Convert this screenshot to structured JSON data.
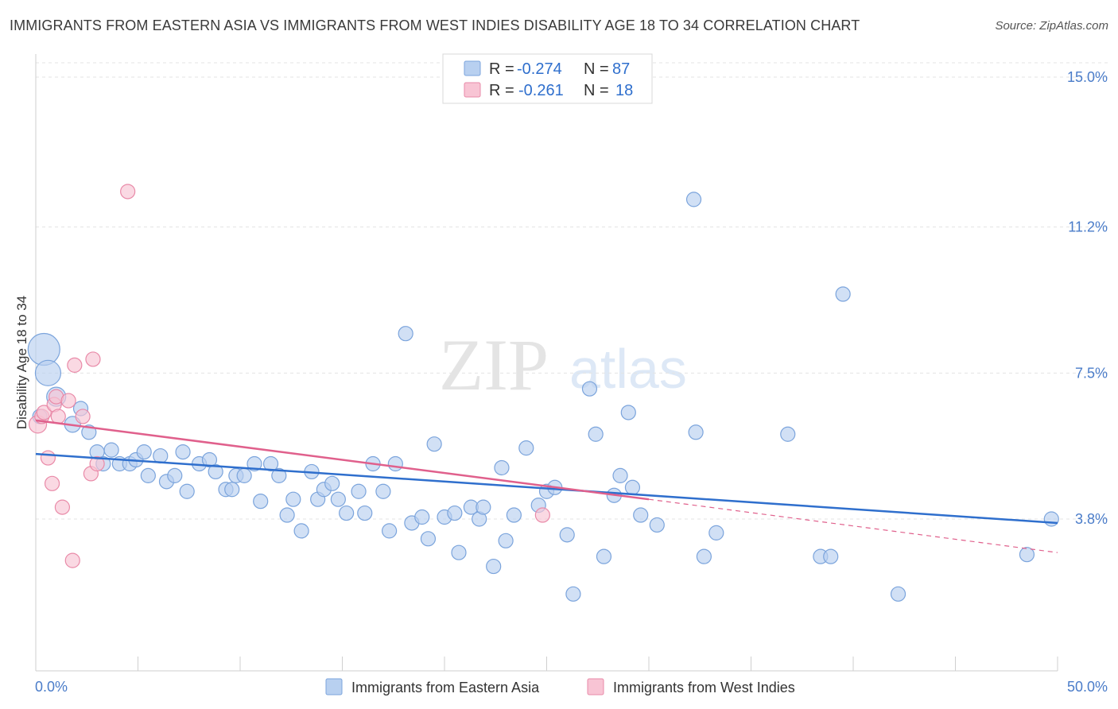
{
  "header": {
    "title": "IMMIGRANTS FROM EASTERN ASIA VS IMMIGRANTS FROM WEST INDIES DISABILITY AGE 18 TO 34 CORRELATION CHART",
    "source": "Source: ZipAtlas.com"
  },
  "watermark": {
    "zip": "ZIP",
    "atlas": "atlas"
  },
  "colors": {
    "blue_fill": "#b8d0f0",
    "blue_stroke": "#7ba4dc",
    "blue_line": "#2f6fcd",
    "pink_fill": "#f8c4d4",
    "pink_stroke": "#e98aa8",
    "pink_line": "#e0608c",
    "tick_text": "#4a7cc9"
  },
  "legend": {
    "rows": [
      {
        "r_label": "R =",
        "r_value": "-0.274",
        "n_label": "N =",
        "n_value": "87"
      },
      {
        "r_label": "R =",
        "r_value": "-0.261",
        "n_label": "N =",
        "n_value": "18"
      }
    ]
  },
  "chart_data": {
    "type": "scatter",
    "title": "IMMIGRANTS FROM EASTERN ASIA VS IMMIGRANTS FROM WEST INDIES DISABILITY AGE 18 TO 34 CORRELATION CHART",
    "xlabel": "",
    "ylabel": "Disability Age 18 to 34",
    "xlim": [
      0,
      50
    ],
    "ylim": [
      0,
      15.5
    ],
    "x_tick_labels": [
      "0.0%",
      "50.0%"
    ],
    "y_ticks": [
      3.8,
      7.5,
      11.2,
      15.0
    ],
    "y_tick_labels": [
      "3.8%",
      "7.5%",
      "11.2%",
      "15.0%"
    ],
    "grid": true,
    "legend_position": "bottom",
    "series": [
      {
        "name": "Immigrants from Eastern Asia",
        "color": "#7ba4dc",
        "trend": {
          "x": [
            0,
            50
          ],
          "y": [
            5.45,
            3.7
          ]
        },
        "points": [
          {
            "x": 0.4,
            "y": 8.1,
            "s": 20
          },
          {
            "x": 0.6,
            "y": 7.5,
            "s": 16
          },
          {
            "x": 1.0,
            "y": 6.9,
            "s": 12
          },
          {
            "x": 1.8,
            "y": 6.2,
            "s": 10
          },
          {
            "x": 2.2,
            "y": 6.6,
            "s": 9
          },
          {
            "x": 2.6,
            "y": 6.0,
            "s": 9
          },
          {
            "x": 3.0,
            "y": 5.5,
            "s": 9
          },
          {
            "x": 3.3,
            "y": 5.2,
            "s": 9
          },
          {
            "x": 3.7,
            "y": 5.55,
            "s": 9
          },
          {
            "x": 4.1,
            "y": 5.2,
            "s": 9
          },
          {
            "x": 4.6,
            "y": 5.2,
            "s": 9
          },
          {
            "x": 4.9,
            "y": 5.3,
            "s": 9
          },
          {
            "x": 5.3,
            "y": 5.5,
            "s": 9
          },
          {
            "x": 5.5,
            "y": 4.9,
            "s": 9
          },
          {
            "x": 6.1,
            "y": 5.4,
            "s": 9
          },
          {
            "x": 6.4,
            "y": 4.75,
            "s": 9
          },
          {
            "x": 6.8,
            "y": 4.9,
            "s": 9
          },
          {
            "x": 7.2,
            "y": 5.5,
            "s": 9
          },
          {
            "x": 7.4,
            "y": 4.5,
            "s": 9
          },
          {
            "x": 8.0,
            "y": 5.2,
            "s": 9
          },
          {
            "x": 8.5,
            "y": 5.3,
            "s": 9
          },
          {
            "x": 8.8,
            "y": 5.0,
            "s": 9
          },
          {
            "x": 9.3,
            "y": 4.55,
            "s": 9
          },
          {
            "x": 9.6,
            "y": 4.55,
            "s": 9
          },
          {
            "x": 9.8,
            "y": 4.9,
            "s": 9
          },
          {
            "x": 10.2,
            "y": 4.9,
            "s": 9
          },
          {
            "x": 10.7,
            "y": 5.2,
            "s": 9
          },
          {
            "x": 11.0,
            "y": 4.25,
            "s": 9
          },
          {
            "x": 11.5,
            "y": 5.2,
            "s": 9
          },
          {
            "x": 11.9,
            "y": 4.9,
            "s": 9
          },
          {
            "x": 12.3,
            "y": 3.9,
            "s": 9
          },
          {
            "x": 12.6,
            "y": 4.3,
            "s": 9
          },
          {
            "x": 13.0,
            "y": 3.5,
            "s": 9
          },
          {
            "x": 13.5,
            "y": 5.0,
            "s": 9
          },
          {
            "x": 13.8,
            "y": 4.3,
            "s": 9
          },
          {
            "x": 14.1,
            "y": 4.55,
            "s": 9
          },
          {
            "x": 14.5,
            "y": 4.7,
            "s": 9
          },
          {
            "x": 14.8,
            "y": 4.3,
            "s": 9
          },
          {
            "x": 15.2,
            "y": 3.95,
            "s": 9
          },
          {
            "x": 15.8,
            "y": 4.5,
            "s": 9
          },
          {
            "x": 16.1,
            "y": 3.95,
            "s": 9
          },
          {
            "x": 16.5,
            "y": 5.2,
            "s": 9
          },
          {
            "x": 17.0,
            "y": 4.5,
            "s": 9
          },
          {
            "x": 17.3,
            "y": 3.5,
            "s": 9
          },
          {
            "x": 17.6,
            "y": 5.2,
            "s": 9
          },
          {
            "x": 18.1,
            "y": 8.5,
            "s": 9
          },
          {
            "x": 18.4,
            "y": 3.7,
            "s": 9
          },
          {
            "x": 18.9,
            "y": 3.85,
            "s": 9
          },
          {
            "x": 19.2,
            "y": 3.3,
            "s": 9
          },
          {
            "x": 19.5,
            "y": 5.7,
            "s": 9
          },
          {
            "x": 20.0,
            "y": 3.85,
            "s": 9
          },
          {
            "x": 20.5,
            "y": 3.95,
            "s": 9
          },
          {
            "x": 20.7,
            "y": 2.95,
            "s": 9
          },
          {
            "x": 21.3,
            "y": 4.1,
            "s": 9
          },
          {
            "x": 21.7,
            "y": 3.8,
            "s": 9
          },
          {
            "x": 21.9,
            "y": 4.1,
            "s": 9
          },
          {
            "x": 22.4,
            "y": 2.6,
            "s": 9
          },
          {
            "x": 22.8,
            "y": 5.1,
            "s": 9
          },
          {
            "x": 23.0,
            "y": 3.25,
            "s": 9
          },
          {
            "x": 23.4,
            "y": 3.9,
            "s": 9
          },
          {
            "x": 24.0,
            "y": 5.6,
            "s": 9
          },
          {
            "x": 24.6,
            "y": 4.15,
            "s": 9
          },
          {
            "x": 25.0,
            "y": 4.5,
            "s": 9
          },
          {
            "x": 25.4,
            "y": 4.6,
            "s": 9
          },
          {
            "x": 26.0,
            "y": 3.4,
            "s": 9
          },
          {
            "x": 26.3,
            "y": 1.9,
            "s": 9
          },
          {
            "x": 27.1,
            "y": 7.1,
            "s": 9
          },
          {
            "x": 27.4,
            "y": 5.95,
            "s": 9
          },
          {
            "x": 27.8,
            "y": 2.85,
            "s": 9
          },
          {
            "x": 28.3,
            "y": 4.4,
            "s": 9
          },
          {
            "x": 28.6,
            "y": 4.9,
            "s": 9
          },
          {
            "x": 29.0,
            "y": 6.5,
            "s": 9
          },
          {
            "x": 29.2,
            "y": 4.6,
            "s": 9
          },
          {
            "x": 29.6,
            "y": 3.9,
            "s": 9
          },
          {
            "x": 30.4,
            "y": 3.65,
            "s": 9
          },
          {
            "x": 32.2,
            "y": 11.9,
            "s": 9
          },
          {
            "x": 32.3,
            "y": 6.0,
            "s": 9
          },
          {
            "x": 32.7,
            "y": 2.85,
            "s": 9
          },
          {
            "x": 33.3,
            "y": 3.45,
            "s": 9
          },
          {
            "x": 36.8,
            "y": 5.95,
            "s": 9
          },
          {
            "x": 38.4,
            "y": 2.85,
            "s": 9
          },
          {
            "x": 38.9,
            "y": 2.85,
            "s": 9
          },
          {
            "x": 39.5,
            "y": 9.5,
            "s": 9
          },
          {
            "x": 42.2,
            "y": 1.9,
            "s": 9
          },
          {
            "x": 48.5,
            "y": 2.9,
            "s": 9
          },
          {
            "x": 49.7,
            "y": 3.8,
            "s": 9
          },
          {
            "x": 0.2,
            "y": 6.4,
            "s": 9
          }
        ]
      },
      {
        "name": "Immigrants from West Indies",
        "color": "#e98aa8",
        "trend": {
          "x": [
            0,
            30
          ],
          "y": [
            6.3,
            4.3
          ]
        },
        "trend_dashed": {
          "x": [
            30,
            50
          ],
          "y": [
            4.3,
            2.95
          ]
        },
        "points": [
          {
            "x": 0.1,
            "y": 6.2,
            "s": 11
          },
          {
            "x": 0.3,
            "y": 6.4,
            "s": 9
          },
          {
            "x": 0.4,
            "y": 6.5,
            "s": 9
          },
          {
            "x": 0.6,
            "y": 5.35,
            "s": 9
          },
          {
            "x": 0.8,
            "y": 4.7,
            "s": 9
          },
          {
            "x": 0.9,
            "y": 6.7,
            "s": 9
          },
          {
            "x": 1.0,
            "y": 6.9,
            "s": 9
          },
          {
            "x": 1.1,
            "y": 6.4,
            "s": 9
          },
          {
            "x": 1.3,
            "y": 4.1,
            "s": 9
          },
          {
            "x": 1.6,
            "y": 6.8,
            "s": 9
          },
          {
            "x": 1.8,
            "y": 2.75,
            "s": 9
          },
          {
            "x": 1.9,
            "y": 7.7,
            "s": 9
          },
          {
            "x": 2.3,
            "y": 6.4,
            "s": 9
          },
          {
            "x": 2.7,
            "y": 4.95,
            "s": 9
          },
          {
            "x": 2.8,
            "y": 7.85,
            "s": 9
          },
          {
            "x": 3.0,
            "y": 5.2,
            "s": 9
          },
          {
            "x": 4.5,
            "y": 12.1,
            "s": 9
          },
          {
            "x": 24.8,
            "y": 3.9,
            "s": 9
          }
        ]
      }
    ]
  }
}
